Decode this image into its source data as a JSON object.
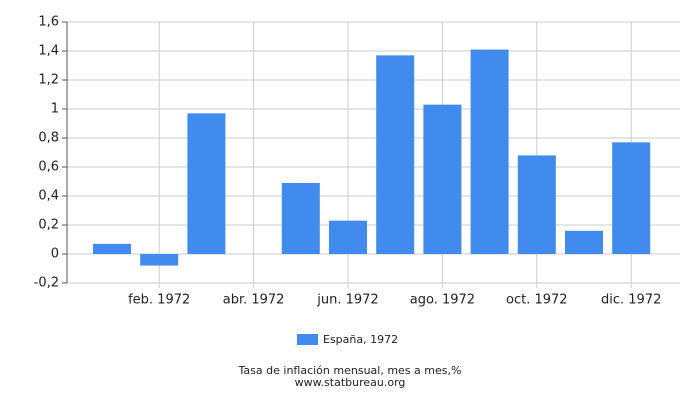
{
  "chart_data": {
    "type": "bar",
    "categories": [
      null,
      "feb. 1972",
      null,
      "abr. 1972",
      null,
      "jun. 1972",
      null,
      "ago. 1972",
      null,
      "oct. 1972",
      null,
      "dic. 1972"
    ],
    "series": [
      {
        "name": "España, 1972",
        "color": "#428bee",
        "values": [
          0.07,
          -0.08,
          0.97,
          0,
          0.49,
          0.23,
          1.37,
          1.03,
          1.41,
          0.68,
          0.16,
          0.77
        ]
      }
    ],
    "ylim": [
      -0.2,
      1.6
    ],
    "yticks": [
      {
        "value": -0.2,
        "label": "-0,2"
      },
      0,
      {
        "value": 0.2,
        "label": "0,2"
      },
      {
        "value": 0.4,
        "label": "0,4"
      },
      {
        "value": 0.6,
        "label": "0,6"
      },
      {
        "value": 0.8,
        "label": "0,8"
      },
      1,
      {
        "value": 1.2,
        "label": "1,2"
      },
      {
        "value": 1.4,
        "label": "1,4"
      },
      {
        "value": 1.6,
        "label": "1,6"
      }
    ],
    "grid": true,
    "legend": "bottom",
    "caption": "Tasa de inflación mensual, mes a mes,%",
    "source": "www.statbureau.org"
  }
}
